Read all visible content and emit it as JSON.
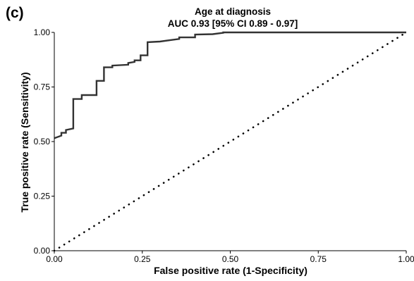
{
  "panel_label": "(c)",
  "chart_data": {
    "type": "line",
    "title": "Age at diagnosis",
    "subtitle": "AUC 0.93 [95% CI 0.89 - 0.97]",
    "xlabel": "False positive rate (1-Specificity)",
    "ylabel": "True positive rate (Sensitivity)",
    "xlim": [
      0,
      1
    ],
    "ylim": [
      0,
      1
    ],
    "xticks": [
      "0.00",
      "0.25",
      "0.50",
      "0.75",
      "1.00"
    ],
    "yticks": [
      "0.00",
      "0.25",
      "0.50",
      "0.75",
      "1.00"
    ],
    "grid": false,
    "legend": "none",
    "series": [
      {
        "style": "solid",
        "color": "#333333",
        "x": [
          0,
          0.02,
          0.02,
          0.033,
          0.033,
          0.054,
          0.054,
          0.078,
          0.078,
          0.12,
          0.12,
          0.141,
          0.141,
          0.165,
          0.165,
          0.21,
          0.21,
          0.228,
          0.228,
          0.245,
          0.245,
          0.265,
          0.265,
          0.3,
          0.33,
          0.355,
          0.355,
          0.4,
          0.4,
          0.45,
          0.48,
          0.48,
          1.0
        ],
        "y": [
          0.515,
          0.527,
          0.54,
          0.54,
          0.553,
          0.56,
          0.695,
          0.695,
          0.713,
          0.713,
          0.778,
          0.778,
          0.84,
          0.84,
          0.848,
          0.852,
          0.86,
          0.865,
          0.872,
          0.872,
          0.895,
          0.895,
          0.955,
          0.958,
          0.965,
          0.97,
          0.977,
          0.977,
          0.99,
          0.992,
          0.998,
          1.0,
          1.0
        ]
      },
      {
        "style": "dotted",
        "color": "#000000",
        "x": [
          0,
          1
        ],
        "y": [
          0,
          1
        ]
      }
    ]
  }
}
